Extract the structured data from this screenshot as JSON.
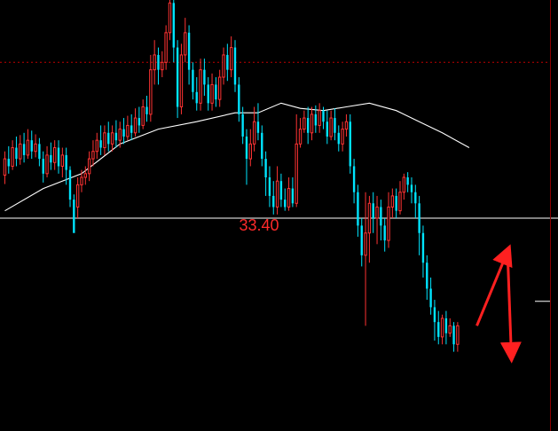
{
  "chart_data": {
    "type": "candlestick",
    "title": "",
    "xlabel": "",
    "ylabel": "",
    "ylim": [
      31.5,
      36.4
    ],
    "reference_level": {
      "value": 33.4,
      "label": "33.40"
    },
    "dashed_level": 35.5,
    "colors": {
      "up": "#ff3333",
      "down": "#00e5ff",
      "moving_average": "#ffffff",
      "reference_line": "#ffffff",
      "dashed_line": "#c00000",
      "arrows": "#ff2020",
      "label": "#ff2a2a"
    },
    "candles": [
      [
        33.98,
        34.2,
        34.3,
        33.86
      ],
      [
        34.2,
        34.1,
        34.37,
        34.0
      ],
      [
        34.1,
        34.35,
        34.45,
        34.05
      ],
      [
        34.35,
        34.2,
        34.5,
        34.1
      ],
      [
        34.2,
        34.4,
        34.52,
        34.12
      ],
      [
        34.4,
        34.25,
        34.55,
        34.15
      ],
      [
        34.25,
        34.45,
        34.6,
        34.2
      ],
      [
        34.45,
        34.3,
        34.58,
        34.2
      ],
      [
        34.3,
        34.4,
        34.53,
        34.22
      ],
      [
        34.4,
        34.2,
        34.48,
        34.1
      ],
      [
        34.2,
        34.0,
        34.3,
        33.88
      ],
      [
        34.0,
        34.25,
        34.37,
        33.95
      ],
      [
        34.25,
        34.15,
        34.42,
        34.05
      ],
      [
        34.15,
        34.35,
        34.45,
        34.05
      ],
      [
        34.35,
        34.1,
        34.45,
        34.0
      ],
      [
        34.1,
        34.25,
        34.35,
        33.95
      ],
      [
        34.25,
        34.05,
        34.35,
        33.85
      ],
      [
        34.05,
        33.65,
        34.1,
        33.55
      ],
      [
        33.65,
        33.2,
        33.72,
        33.5
      ],
      [
        33.55,
        33.85,
        33.95,
        33.4
      ],
      [
        33.85,
        33.95,
        34.05,
        33.75
      ],
      [
        33.95,
        34.0,
        34.1,
        33.85
      ],
      [
        34.0,
        34.2,
        34.3,
        33.9
      ],
      [
        34.2,
        34.3,
        34.45,
        34.1
      ],
      [
        34.3,
        34.45,
        34.55,
        34.2
      ],
      [
        34.45,
        34.35,
        34.65,
        34.25
      ],
      [
        34.35,
        34.55,
        34.65,
        34.25
      ],
      [
        34.55,
        34.4,
        34.7,
        34.3
      ],
      [
        34.4,
        34.55,
        34.65,
        34.3
      ],
      [
        34.55,
        34.45,
        34.72,
        34.35
      ],
      [
        34.45,
        34.6,
        34.7,
        34.35
      ],
      [
        34.6,
        34.5,
        34.75,
        34.4
      ],
      [
        34.5,
        34.65,
        34.78,
        34.45
      ],
      [
        34.65,
        34.55,
        34.8,
        34.45
      ],
      [
        34.55,
        34.75,
        34.88,
        34.5
      ],
      [
        34.75,
        34.65,
        34.9,
        34.55
      ],
      [
        34.65,
        34.9,
        35.0,
        34.6
      ],
      [
        34.9,
        34.8,
        35.05,
        34.7
      ],
      [
        34.8,
        35.4,
        35.6,
        34.7
      ],
      [
        35.4,
        35.6,
        35.8,
        35.2
      ],
      [
        35.6,
        35.4,
        35.7,
        35.2
      ],
      [
        35.4,
        35.5,
        35.65,
        35.3
      ],
      [
        35.5,
        35.9,
        36.0,
        35.4
      ],
      [
        35.9,
        36.3,
        36.45,
        35.8
      ],
      [
        36.3,
        35.7,
        36.4,
        35.5
      ],
      [
        35.7,
        34.9,
        35.8,
        34.75
      ],
      [
        34.9,
        35.6,
        35.75,
        34.8
      ],
      [
        35.6,
        35.9,
        36.1,
        35.5
      ],
      [
        35.9,
        35.4,
        36.0,
        35.2
      ],
      [
        35.4,
        35.1,
        35.5,
        35.0
      ],
      [
        35.1,
        34.95,
        35.3,
        34.85
      ],
      [
        34.95,
        35.4,
        35.55,
        34.85
      ],
      [
        35.4,
        35.2,
        35.55,
        35.05
      ],
      [
        35.2,
        34.95,
        35.3,
        34.85
      ],
      [
        34.95,
        35.2,
        35.35,
        34.85
      ],
      [
        35.2,
        35.0,
        35.3,
        34.9
      ],
      [
        35.0,
        35.3,
        35.4,
        34.9
      ],
      [
        35.3,
        35.6,
        35.7,
        35.2
      ],
      [
        35.6,
        35.4,
        35.75,
        35.25
      ],
      [
        35.4,
        35.7,
        35.85,
        35.3
      ],
      [
        35.7,
        35.2,
        35.8,
        35.1
      ],
      [
        35.2,
        34.8,
        35.3,
        34.7
      ],
      [
        34.8,
        34.5,
        34.9,
        34.4
      ],
      [
        34.5,
        34.2,
        34.6,
        33.85
      ],
      [
        34.2,
        34.4,
        34.6,
        34.1
      ],
      [
        34.4,
        34.7,
        34.9,
        34.3
      ],
      [
        34.7,
        34.55,
        34.95,
        34.45
      ],
      [
        34.55,
        34.2,
        34.65,
        34.1
      ],
      [
        34.2,
        33.95,
        34.3,
        33.7
      ],
      [
        33.95,
        33.7,
        34.1,
        33.55
      ],
      [
        33.7,
        33.55,
        33.9,
        33.45
      ],
      [
        33.55,
        33.9,
        34.1,
        33.45
      ],
      [
        33.9,
        33.65,
        34.0,
        33.55
      ],
      [
        33.65,
        33.55,
        33.8,
        33.5
      ],
      [
        33.55,
        33.8,
        33.95,
        33.5
      ],
      [
        33.8,
        33.6,
        33.95,
        33.55
      ],
      [
        33.6,
        34.4,
        34.8,
        33.55
      ],
      [
        34.4,
        34.6,
        34.75,
        34.35
      ],
      [
        34.6,
        34.75,
        34.85,
        34.55
      ],
      [
        34.75,
        34.55,
        34.9,
        34.4
      ],
      [
        34.55,
        34.8,
        34.9,
        34.45
      ],
      [
        34.8,
        34.65,
        34.92,
        34.55
      ],
      [
        34.65,
        34.85,
        34.95,
        34.55
      ],
      [
        34.85,
        34.7,
        34.9,
        34.6
      ],
      [
        34.7,
        34.5,
        34.85,
        34.4
      ],
      [
        34.5,
        34.75,
        34.85,
        34.45
      ],
      [
        34.75,
        34.55,
        34.88,
        34.45
      ],
      [
        34.55,
        34.4,
        34.65,
        34.3
      ],
      [
        34.4,
        34.6,
        34.7,
        34.3
      ],
      [
        34.6,
        34.7,
        34.8,
        34.5
      ],
      [
        34.7,
        34.1,
        34.8,
        34.0
      ],
      [
        34.1,
        33.75,
        34.2,
        33.6
      ],
      [
        33.75,
        33.3,
        33.85,
        33.15
      ],
      [
        33.3,
        32.9,
        33.4,
        32.75
      ],
      [
        32.9,
        33.2,
        33.75,
        31.95
      ],
      [
        33.2,
        33.6,
        33.7,
        32.8
      ],
      [
        33.6,
        33.4,
        33.75,
        33.2
      ],
      [
        33.4,
        33.55,
        33.7,
        33.05
      ],
      [
        33.55,
        33.3,
        33.65,
        33.1
      ],
      [
        33.3,
        33.1,
        33.4,
        32.95
      ],
      [
        33.1,
        33.55,
        33.75,
        33.0
      ],
      [
        33.55,
        33.7,
        33.8,
        33.4
      ],
      [
        33.7,
        33.5,
        33.8,
        33.4
      ],
      [
        33.5,
        33.75,
        33.9,
        33.45
      ],
      [
        33.75,
        33.95,
        34.0,
        33.65
      ],
      [
        33.95,
        33.85,
        34.02,
        33.75
      ],
      [
        33.85,
        33.75,
        33.95,
        33.6
      ],
      [
        33.75,
        33.6,
        33.85,
        33.4
      ],
      [
        33.6,
        33.2,
        33.7,
        32.9
      ],
      [
        33.2,
        32.8,
        33.3,
        32.6
      ],
      [
        32.8,
        32.45,
        32.9,
        32.3
      ],
      [
        32.45,
        32.2,
        32.6,
        32.1
      ],
      [
        32.2,
        32.0,
        32.3,
        31.75
      ],
      [
        32.0,
        31.8,
        32.15,
        31.7
      ],
      [
        31.8,
        32.05,
        32.1,
        31.7
      ],
      [
        32.05,
        31.85,
        32.15,
        31.7
      ],
      [
        31.85,
        31.95,
        32.05,
        31.8
      ],
      [
        31.95,
        31.7,
        32.0,
        31.6
      ],
      [
        31.7,
        31.95,
        32.0,
        31.6
      ]
    ],
    "moving_average": [
      [
        0,
        33.5
      ],
      [
        10,
        33.8
      ],
      [
        20,
        34.0
      ],
      [
        30,
        34.4
      ],
      [
        40,
        34.6
      ],
      [
        50,
        34.7
      ],
      [
        60,
        34.82
      ],
      [
        66,
        34.82
      ],
      [
        72,
        34.95
      ],
      [
        77,
        34.88
      ],
      [
        83,
        34.85
      ],
      [
        89,
        34.9
      ],
      [
        95,
        34.95
      ],
      [
        102,
        34.85
      ],
      [
        108,
        34.7
      ],
      [
        114,
        34.55
      ],
      [
        121,
        34.35
      ]
    ],
    "projection_arrows": [
      {
        "from": [
          123,
          31.95
        ],
        "to": [
          131,
          32.95
        ]
      },
      {
        "from": [
          131,
          32.95
        ],
        "to": [
          132,
          31.55
        ]
      }
    ],
    "right_marker_level": 32.28
  }
}
